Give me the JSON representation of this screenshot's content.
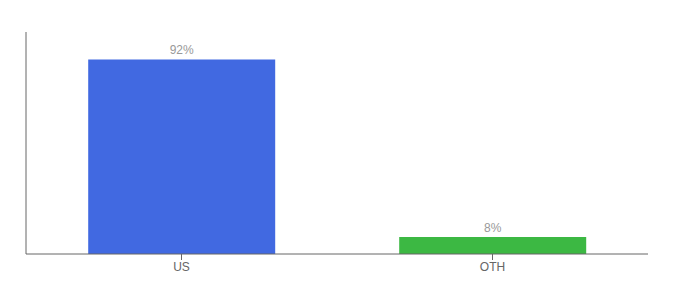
{
  "chart_data": {
    "type": "bar",
    "categories": [
      "US",
      "OTH"
    ],
    "values": [
      92,
      8
    ],
    "value_labels": [
      "92%",
      "8%"
    ],
    "colors": [
      "#4169e1",
      "#3cb843"
    ],
    "ylim": [
      0,
      105
    ],
    "data_labels": true,
    "tick_labels": "x"
  }
}
